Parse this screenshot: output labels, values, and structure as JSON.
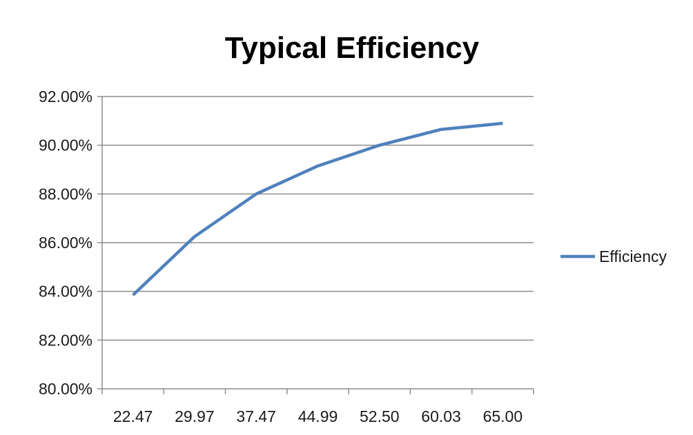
{
  "chart_data": {
    "type": "line",
    "title": "Typical Efficiency",
    "xlabel": "",
    "ylabel": "",
    "categories": [
      "22.47",
      "29.97",
      "37.47",
      "44.99",
      "52.50",
      "60.03",
      "65.00"
    ],
    "series": [
      {
        "name": "Efficiency",
        "values": [
          83.85,
          86.25,
          88.0,
          89.15,
          90.0,
          90.65,
          90.9
        ],
        "color": "#4f81bd"
      }
    ],
    "ylim": [
      80,
      92
    ],
    "yticks": [
      "80.00%",
      "82.00%",
      "84.00%",
      "86.00%",
      "88.00%",
      "90.00%",
      "92.00%"
    ],
    "grid": true,
    "legend_position": "right"
  },
  "colors": {
    "gridline": "#8c8c8c",
    "axis": "#8c8c8c",
    "series": "#4f81bd"
  }
}
